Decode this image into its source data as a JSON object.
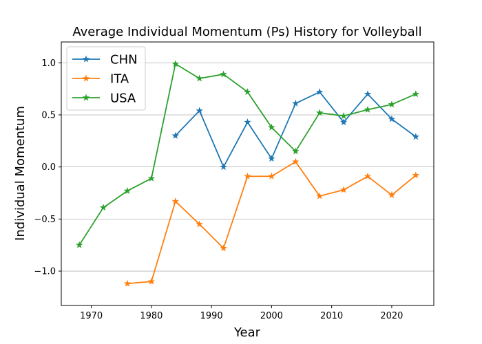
{
  "chart_data": {
    "type": "line",
    "title": "Average Individual Momentum (Ps) History for Volleyball",
    "xlabel": "Year",
    "ylabel": "Individual Momentum",
    "xlim": [
      1965,
      2027
    ],
    "ylim": [
      -1.33,
      1.2
    ],
    "xticks": [
      1970,
      1980,
      1990,
      2000,
      2010,
      2020
    ],
    "yticks": [
      -1.0,
      -0.5,
      0.0,
      0.5,
      1.0
    ],
    "ytick_labels": [
      "−1.0",
      "−0.5",
      "0.0",
      "0.5",
      "1.0"
    ],
    "grid": "horizontal",
    "legend_position": "top-left",
    "marker": "star",
    "series": [
      {
        "name": "CHN",
        "color": "#1f77b4",
        "x": [
          1984,
          1988,
          1992,
          1996,
          2000,
          2004,
          2008,
          2012,
          2016,
          2020,
          2024
        ],
        "y": [
          0.3,
          0.54,
          0.0,
          0.43,
          0.08,
          0.61,
          0.72,
          0.43,
          0.7,
          0.46,
          0.29
        ]
      },
      {
        "name": "ITA",
        "color": "#ff7f0e",
        "x": [
          1976,
          1980,
          1984,
          1988,
          1992,
          1996,
          2000,
          2004,
          2008,
          2012,
          2016,
          2020,
          2024
        ],
        "y": [
          -1.12,
          -1.1,
          -0.33,
          -0.55,
          -0.78,
          -0.09,
          -0.09,
          0.05,
          -0.28,
          -0.22,
          -0.09,
          -0.27,
          -0.08
        ]
      },
      {
        "name": "USA",
        "color": "#2ca02c",
        "x": [
          1968,
          1972,
          1976,
          1980,
          1984,
          1988,
          1992,
          1996,
          2000,
          2004,
          2008,
          2012,
          2016,
          2020,
          2024
        ],
        "y": [
          -0.75,
          -0.39,
          -0.23,
          -0.11,
          0.99,
          0.85,
          0.89,
          0.72,
          0.38,
          0.15,
          0.52,
          0.49,
          0.55,
          0.6,
          0.7
        ]
      }
    ]
  }
}
